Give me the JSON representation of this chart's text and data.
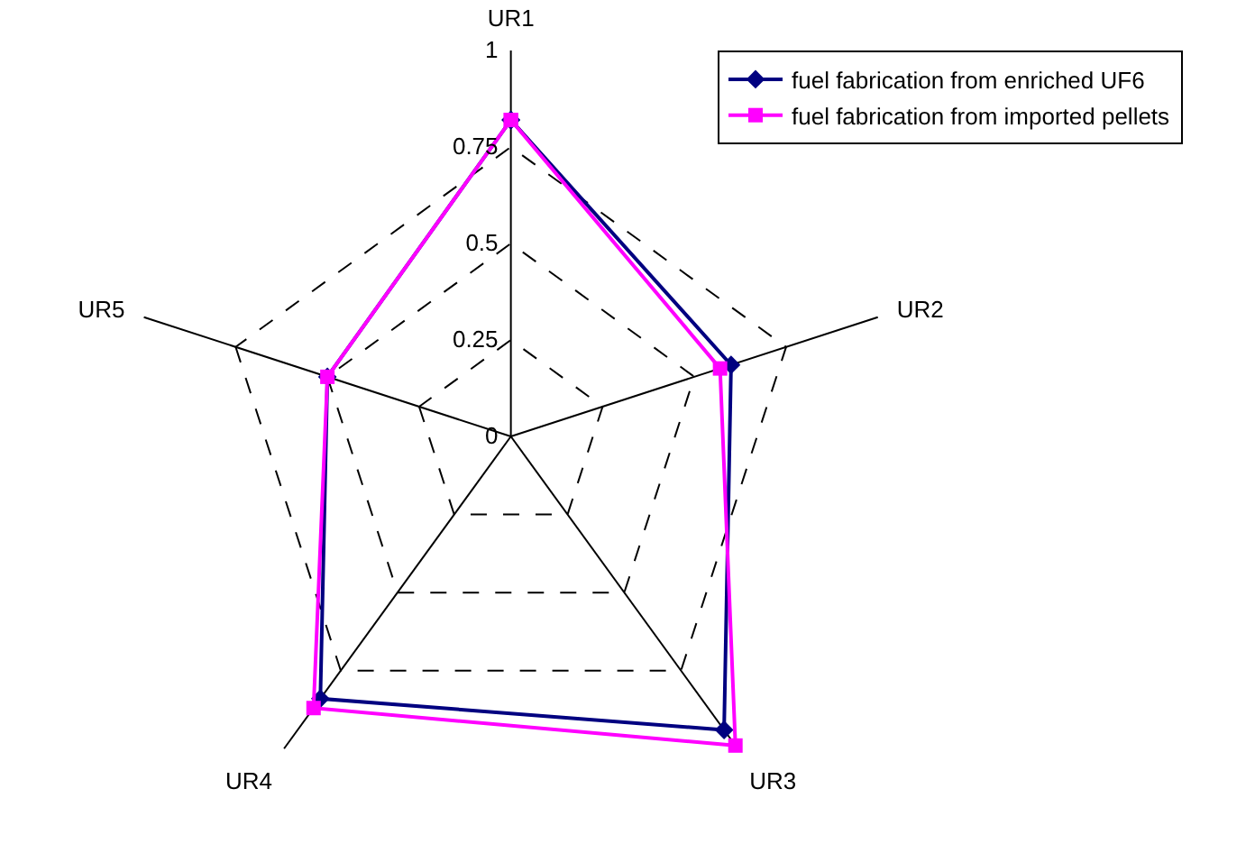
{
  "chart_data": {
    "type": "radar",
    "categories": [
      "UR1",
      "UR2",
      "UR3",
      "UR4",
      "UR5"
    ],
    "ylim": [
      0,
      1
    ],
    "yticks": [
      0,
      0.25,
      0.5,
      0.75,
      1
    ],
    "grid": true,
    "legend": "top right",
    "series": [
      {
        "name": "fuel fabrication from enriched UF6",
        "color": "#000080",
        "marker": "diamond",
        "values": [
          0.82,
          0.6,
          0.94,
          0.84,
          0.5
        ]
      },
      {
        "name": "fuel fabrication from imported pellets",
        "color": "#ff00ff",
        "marker": "square",
        "values": [
          0.82,
          0.57,
          0.99,
          0.87,
          0.5
        ]
      }
    ]
  }
}
